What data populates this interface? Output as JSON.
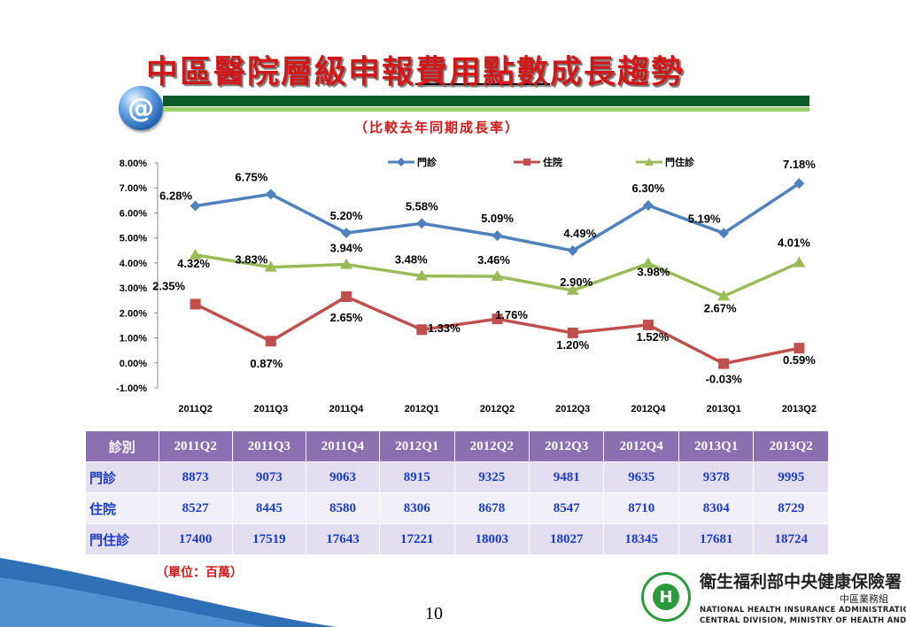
{
  "slide": {
    "title_part1": "中區醫院層級申報",
    "title_part2": "費用點數",
    "title_part3": "成長趨勢",
    "badge": "@",
    "subtitle": "（比較去年同期成長率）",
    "unit": "（單位：百萬）",
    "page_number": "10"
  },
  "chart_data": {
    "type": "line",
    "categories": [
      "2011Q2",
      "2011Q3",
      "2011Q4",
      "2012Q1",
      "2012Q2",
      "2012Q3",
      "2012Q4",
      "2013Q1",
      "2013Q2"
    ],
    "ylim": [
      -1.0,
      8.0
    ],
    "yticks": [
      "8.00%",
      "7.00%",
      "6.00%",
      "5.00%",
      "4.00%",
      "3.00%",
      "2.00%",
      "1.00%",
      "0.00%",
      "-1.00%"
    ],
    "legend_position": "top",
    "grid": false,
    "series": [
      {
        "name": "門診",
        "color": "#4f81bd",
        "marker": "diamond",
        "values": [
          6.28,
          6.75,
          5.2,
          5.58,
          5.09,
          4.49,
          6.3,
          5.19,
          7.18
        ],
        "labels": [
          "6.28%",
          "6.75%",
          "5.20%",
          "5.58%",
          "5.09%",
          "4.49%",
          "6.30%",
          "5.19%",
          "7.18%"
        ]
      },
      {
        "name": "住院",
        "color": "#c0504d",
        "marker": "square",
        "values": [
          2.35,
          0.87,
          2.65,
          1.33,
          1.76,
          1.2,
          1.52,
          -0.03,
          0.59
        ],
        "labels": [
          "2.35%",
          "0.87%",
          "2.65%",
          "1.33%",
          "1.76%",
          "1.20%",
          "1.52%",
          "-0.03%",
          "0.59%"
        ]
      },
      {
        "name": "門住診",
        "color": "#9bbb59",
        "marker": "triangle",
        "values": [
          4.32,
          3.83,
          3.94,
          3.48,
          3.46,
          2.9,
          3.98,
          2.67,
          4.01
        ],
        "labels": [
          "4.32%",
          "3.83%",
          "3.94%",
          "3.48%",
          "3.46%",
          "2.90%",
          "3.98%",
          "2.67%",
          "4.01%"
        ]
      }
    ]
  },
  "table": {
    "corner": "診別",
    "headers": [
      "2011Q2",
      "2011Q3",
      "2011Q4",
      "2012Q1",
      "2012Q2",
      "2012Q3",
      "2012Q4",
      "2013Q1",
      "2013Q2"
    ],
    "rows": [
      {
        "label": "門診",
        "values": [
          "8873",
          "9073",
          "9063",
          "8915",
          "9325",
          "9481",
          "9635",
          "9378",
          "9995"
        ]
      },
      {
        "label": "住院",
        "values": [
          "8527",
          "8445",
          "8580",
          "8306",
          "8678",
          "8547",
          "8710",
          "8304",
          "8729"
        ]
      },
      {
        "label": "門住診",
        "values": [
          "17400",
          "17519",
          "17643",
          "17221",
          "18003",
          "18027",
          "18345",
          "17681",
          "18724"
        ]
      }
    ]
  },
  "footer": {
    "org_cn": "衛生福利部中央健康保險署",
    "org_sub": "中區業務組",
    "org_en1": "NATIONAL HEALTH INSURANCE ADMINISTRATION-",
    "org_en2": "CENTRAL DIVISION, MINISTRY OF HEALTH AND WELFARE"
  }
}
